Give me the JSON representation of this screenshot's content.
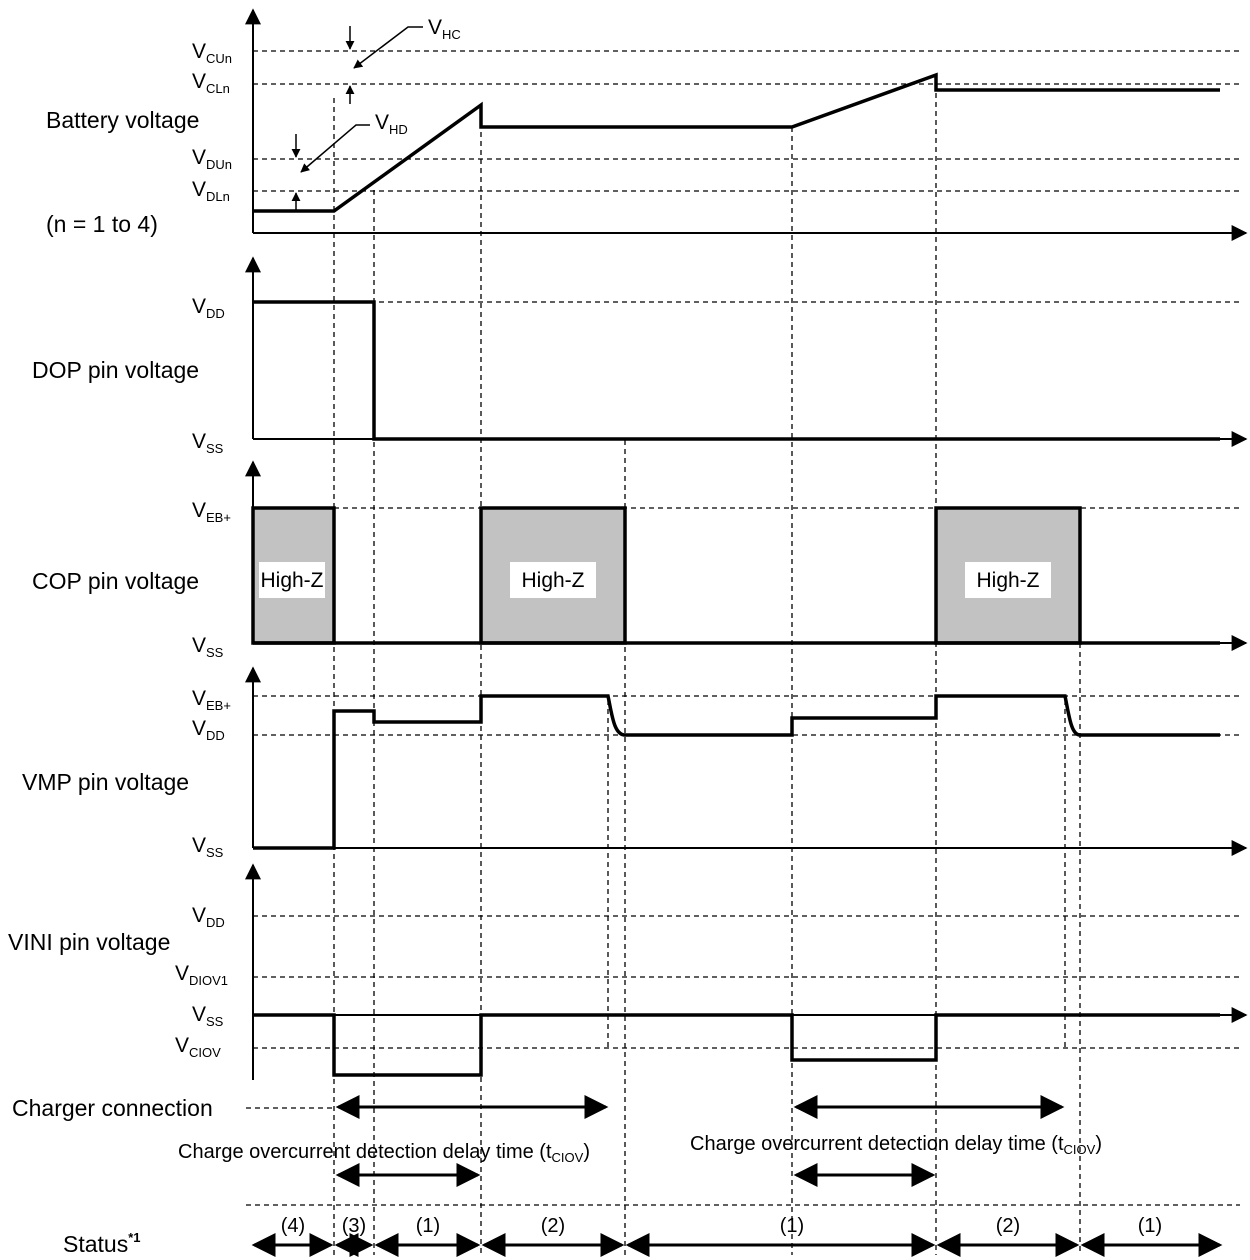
{
  "panels": {
    "battery": {
      "title": "Battery voltage",
      "note": "(n = 1 to 4)",
      "levels": {
        "vcun": {
          "main": "V",
          "sub": "CUn"
        },
        "vcln": {
          "main": "V",
          "sub": "CLn"
        },
        "vdun": {
          "main": "V",
          "sub": "DUn"
        },
        "vdln": {
          "main": "V",
          "sub": "DLn"
        }
      },
      "callouts": {
        "vhc": {
          "main": "V",
          "sub": "HC"
        },
        "vhd": {
          "main": "V",
          "sub": "HD"
        }
      }
    },
    "dop": {
      "title": "DOP pin voltage",
      "levels": {
        "vdd": {
          "main": "V",
          "sub": "DD"
        },
        "vss": {
          "main": "V",
          "sub": "SS"
        }
      }
    },
    "cop": {
      "title": "COP pin voltage",
      "levels": {
        "veb": {
          "main": "V",
          "sub": "EB+"
        },
        "vss": {
          "main": "V",
          "sub": "SS"
        }
      },
      "highz_label": "High-Z"
    },
    "vmp": {
      "title": "VMP pin voltage",
      "levels": {
        "veb": {
          "main": "V",
          "sub": "EB+"
        },
        "vdd": {
          "main": "V",
          "sub": "DD"
        },
        "vss": {
          "main": "V",
          "sub": "SS"
        }
      }
    },
    "vini": {
      "title": "VINI pin voltage",
      "levels": {
        "vdd": {
          "main": "V",
          "sub": "DD"
        },
        "vdiov1": {
          "main": "V",
          "sub": "DIOV1"
        },
        "vss": {
          "main": "V",
          "sub": "SS"
        },
        "vciov": {
          "main": "V",
          "sub": "CIOV"
        }
      }
    }
  },
  "charger_connection": "Charger connection",
  "delay": {
    "first": {
      "text": "Charge overcurrent detection delay time (t",
      "sub": "CIOV",
      "close": ")"
    },
    "second": {
      "text": "Charge overcurrent detection delay time (t",
      "sub": "CIOV",
      "close": ")"
    }
  },
  "status": {
    "label": "Status",
    "footnote": "*1",
    "intervals": [
      "(4)",
      "(3)",
      "(1)",
      "(2)",
      "(1)",
      "(2)",
      "(1)"
    ]
  }
}
